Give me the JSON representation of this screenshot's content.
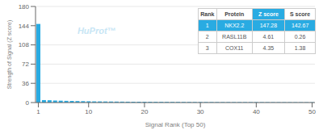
{
  "chart_data": {
    "type": "bar",
    "title": "",
    "xlabel": "Signal Rank (Top 50)",
    "ylabel": "Strength of Signal (Z score)",
    "x": [
      1,
      2,
      3,
      4,
      5,
      6,
      7,
      8,
      9,
      10,
      11,
      12,
      13,
      14,
      15,
      16,
      17,
      18,
      19,
      20,
      21,
      22,
      23,
      24,
      25,
      26,
      27,
      28,
      29,
      30,
      31,
      32,
      33,
      34,
      35,
      36,
      37,
      38,
      39,
      40,
      41,
      42,
      43,
      44,
      45,
      46,
      47,
      48,
      49,
      50
    ],
    "values": [
      147.28,
      4.61,
      4.35,
      3.8,
      3.5,
      3.2,
      3.0,
      2.8,
      2.6,
      2.4,
      2.2,
      2.1,
      2.0,
      1.9,
      1.8,
      1.7,
      1.6,
      1.55,
      1.5,
      1.45,
      1.4,
      1.35,
      1.3,
      1.25,
      1.2,
      1.15,
      1.1,
      1.05,
      1.0,
      0.95,
      0.9,
      0.88,
      0.86,
      0.84,
      0.82,
      0.8,
      0.78,
      0.76,
      0.74,
      0.72,
      0.7,
      0.68,
      0.66,
      0.64,
      0.62,
      0.6,
      0.58,
      0.56,
      0.54,
      0.52
    ],
    "color": "#29abe2",
    "xlim": [
      0.5,
      50.5
    ],
    "ylim": [
      0,
      180
    ],
    "xticks": [
      1,
      10,
      20,
      30,
      40,
      50
    ],
    "yticks": [
      0,
      36,
      72,
      108,
      144,
      180
    ],
    "grid": true,
    "annotations": [
      {
        "text": "HuProt™",
        "color": "#c8e6f5"
      }
    ],
    "table": {
      "headers": [
        "Rank",
        "Protein",
        "Z score",
        "S score"
      ],
      "rows": [
        [
          "1",
          "NKX2.2",
          "147.28",
          "142.67"
        ],
        [
          "2",
          "RASL11B",
          "4.61",
          "0.26"
        ],
        [
          "3",
          "COX11",
          "4.35",
          "1.38"
        ]
      ]
    }
  }
}
